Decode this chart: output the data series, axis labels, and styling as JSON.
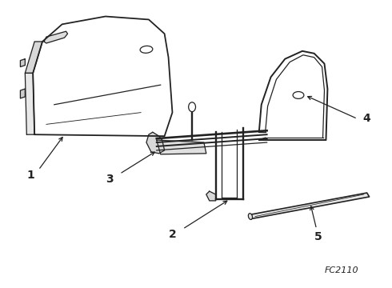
{
  "bg_color": "#ffffff",
  "line_color": "#222222",
  "label_color": "#000000",
  "diagram_code": "FC2110",
  "lw": 0.9
}
